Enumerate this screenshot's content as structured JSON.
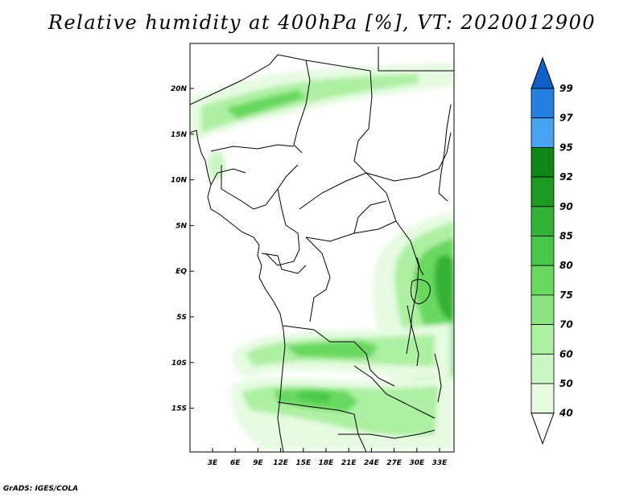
{
  "map": {
    "title": "Relative humidity at 400hPa [%], VT: 2020012900",
    "credit": "GrADS: IGES/COLA",
    "lat_labels": [
      "20N",
      "15N",
      "10N",
      "5N",
      "EQ",
      "5S",
      "10S",
      "15S"
    ],
    "lon_labels": [
      "3E",
      "6E",
      "9E",
      "12E",
      "15E",
      "18E",
      "21E",
      "24E",
      "27E",
      "30E",
      "33E"
    ],
    "colors": {
      "c40": "#e6fbe2",
      "c50": "#cdf6c6",
      "c60": "#aef0a3",
      "c70": "#8be47f",
      "c75": "#68d85e",
      "c80": "#4ac74a",
      "c85": "#34b236",
      "c90": "#1e9a24",
      "c92": "#0f8616",
      "c95": "#4aa3f0",
      "c97": "#2680e0",
      "c99": "#1060c8"
    }
  },
  "colorbar": {
    "labels": [
      "99",
      "97",
      "95",
      "92",
      "90",
      "85",
      "80",
      "75",
      "70",
      "60",
      "50",
      "40"
    ],
    "colors": [
      "#1060c8",
      "#2680e0",
      "#4aa3f0",
      "#0f8616",
      "#1e9a24",
      "#34b236",
      "#4ac74a",
      "#68d85e",
      "#8be47f",
      "#aef0a3",
      "#cdf6c6",
      "#e6fbe2",
      "#ffffff"
    ]
  }
}
